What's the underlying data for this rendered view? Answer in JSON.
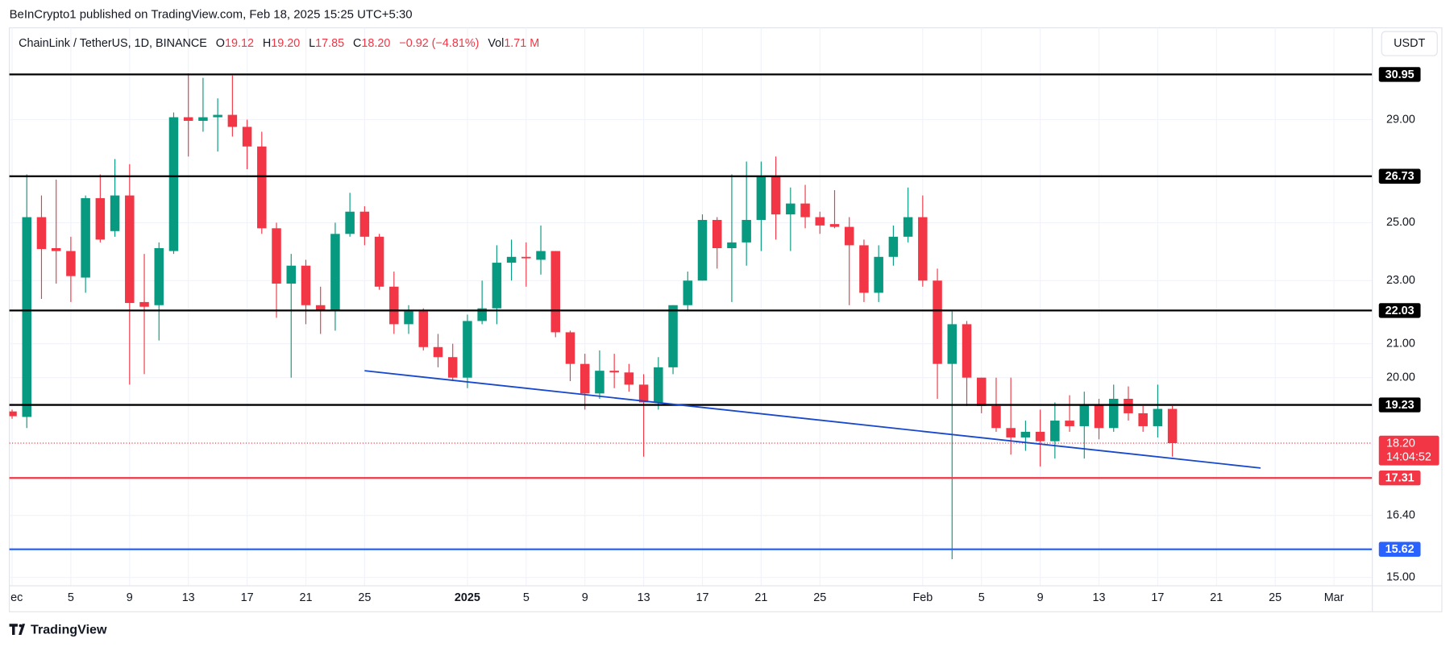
{
  "header": {
    "publisher": "BeInCrypto1 published on TradingView.com, Feb 18, 2025 15:25 UTC+5:30",
    "footer": "TradingView"
  },
  "chart_data": {
    "type": "candlestick",
    "symbol": "ChainLink / TetherUS, 1D, BINANCE",
    "ohlc_legend": [
      {
        "label": "O",
        "value": "19.12"
      },
      {
        "label": "H",
        "value": "19.20"
      },
      {
        "label": "L",
        "value": "17.85"
      },
      {
        "label": "C",
        "value": "18.20"
      }
    ],
    "change": "−0.92 (−4.81%)",
    "volume": {
      "label": "Vol",
      "value": "1.71 M"
    },
    "currency": "USDT",
    "up_color": "#089981",
    "down_color": "#f23645",
    "log_scale": true,
    "grid": true,
    "categories": [
      "Dec 1",
      "Dec 2",
      "Dec 3",
      "Dec 4",
      "Dec 5",
      "Dec 6",
      "Dec 7",
      "Dec 8",
      "Dec 9",
      "Dec 10",
      "Dec 11",
      "Dec 12",
      "Dec 13",
      "Dec 14",
      "Dec 15",
      "Dec 16",
      "Dec 17",
      "Dec 18",
      "Dec 19",
      "Dec 20",
      "Dec 21",
      "Dec 22",
      "Dec 23",
      "Dec 24",
      "Dec 25",
      "Dec 26",
      "Dec 27",
      "Dec 28",
      "Dec 29",
      "Dec 30",
      "Dec 31",
      "Jan 1",
      "Jan 2",
      "Jan 3",
      "Jan 4",
      "Jan 5",
      "Jan 6",
      "Jan 7",
      "Jan 8",
      "Jan 9",
      "Jan 10",
      "Jan 11",
      "Jan 12",
      "Jan 13",
      "Jan 14",
      "Jan 15",
      "Jan 16",
      "Jan 17",
      "Jan 18",
      "Jan 19",
      "Jan 20",
      "Jan 21",
      "Jan 22",
      "Jan 23",
      "Jan 24",
      "Jan 25",
      "Jan 26",
      "Jan 27",
      "Jan 28",
      "Jan 29",
      "Jan 30",
      "Jan 31",
      "Feb 1",
      "Feb 2",
      "Feb 3",
      "Feb 4",
      "Feb 5",
      "Feb 6",
      "Feb 7",
      "Feb 8",
      "Feb 9",
      "Feb 10",
      "Feb 11",
      "Feb 12",
      "Feb 13",
      "Feb 14",
      "Feb 15",
      "Feb 16",
      "Feb 17",
      "Feb 18",
      "Feb 19",
      "Feb 20",
      "Feb 21",
      "Feb 22",
      "Feb 23",
      "Feb 24",
      "Feb 25",
      "Feb 26",
      "Feb 27",
      "Feb 28",
      "Mar 1",
      "Mar 2",
      "Mar 3"
    ],
    "open": [
      19.05,
      18.9,
      25.2,
      24.1,
      24.0,
      23.1,
      25.9,
      24.7,
      26.0,
      22.3,
      22.2,
      24.0,
      29.1,
      28.95,
      29.1,
      29.2,
      28.7,
      27.9,
      24.8,
      22.9,
      23.5,
      22.2,
      22.05,
      24.6,
      25.4,
      24.5,
      22.8,
      21.6,
      22.0,
      20.9,
      20.6,
      20.0,
      21.7,
      22.1,
      23.6,
      23.8,
      23.7,
      24.0,
      21.35,
      20.4,
      19.55,
      20.2,
      20.15,
      19.8,
      19.3,
      20.3,
      22.2,
      23.0,
      25.1,
      24.1,
      24.3,
      25.1,
      26.7,
      25.3,
      25.7,
      25.2,
      24.95,
      24.85,
      24.2,
      22.6,
      23.8,
      24.5,
      25.2,
      23.0,
      20.4,
      21.6,
      20.0,
      19.2,
      18.6,
      18.35,
      18.5,
      18.25,
      18.8,
      18.65,
      19.25,
      18.6,
      19.4,
      19.0,
      18.65,
      19.12,
      null,
      null,
      null,
      null,
      null,
      null,
      null,
      null,
      null,
      null,
      null,
      null,
      null
    ],
    "high": [
      19.1,
      26.8,
      26.0,
      26.6,
      24.5,
      26.0,
      26.8,
      27.4,
      27.2,
      23.9,
      24.3,
      29.3,
      31.0,
      30.8,
      29.9,
      30.9,
      29.0,
      28.5,
      25.0,
      23.9,
      23.7,
      22.8,
      25.0,
      26.1,
      25.6,
      24.6,
      23.3,
      22.2,
      22.1,
      21.3,
      21.0,
      21.9,
      23.0,
      24.2,
      24.4,
      24.3,
      24.9,
      24.0,
      21.4,
      20.7,
      20.8,
      20.7,
      20.4,
      20.1,
      20.6,
      22.2,
      23.3,
      25.3,
      25.2,
      26.8,
      27.3,
      27.3,
      27.5,
      26.3,
      26.4,
      25.4,
      26.2,
      25.2,
      24.4,
      24.2,
      24.9,
      26.3,
      26.0,
      23.4,
      22.0,
      21.7,
      20.0,
      20.0,
      20.0,
      18.8,
      19.1,
      19.3,
      19.5,
      19.6,
      19.4,
      19.8,
      19.75,
      19.2,
      19.8,
      19.2,
      null,
      null,
      null,
      null,
      null,
      null,
      null,
      null,
      null,
      null,
      null,
      null,
      null
    ],
    "low": [
      18.85,
      18.6,
      22.4,
      22.9,
      22.3,
      22.6,
      24.3,
      24.5,
      19.8,
      20.1,
      21.1,
      23.9,
      27.5,
      28.5,
      27.7,
      28.3,
      27.0,
      24.6,
      21.8,
      20.0,
      21.6,
      21.3,
      21.4,
      24.5,
      24.2,
      22.7,
      21.3,
      21.3,
      20.8,
      20.3,
      19.9,
      19.7,
      21.6,
      21.6,
      23.0,
      22.8,
      23.2,
      21.2,
      19.9,
      19.1,
      19.4,
      19.7,
      19.6,
      17.85,
      19.1,
      20.1,
      22.0,
      23.0,
      23.4,
      22.3,
      23.5,
      24.0,
      24.4,
      24.0,
      24.8,
      24.6,
      24.8,
      22.2,
      22.3,
      22.3,
      23.5,
      24.3,
      22.8,
      19.4,
      15.4,
      19.2,
      19.0,
      18.5,
      17.9,
      18.0,
      17.6,
      17.8,
      18.5,
      17.8,
      18.3,
      18.5,
      18.8,
      18.5,
      18.35,
      17.85,
      null,
      null,
      null,
      null,
      null,
      null,
      null,
      null,
      null,
      null,
      null,
      null,
      null
    ],
    "close": [
      18.92,
      25.2,
      24.07,
      24.0,
      23.15,
      25.9,
      24.4,
      26.0,
      22.27,
      22.15,
      24.1,
      29.1,
      28.95,
      29.1,
      29.2,
      28.7,
      27.9,
      24.8,
      22.9,
      23.5,
      22.2,
      22.05,
      24.6,
      25.4,
      24.5,
      22.8,
      21.6,
      22.0,
      20.9,
      20.6,
      20.0,
      21.7,
      22.1,
      23.6,
      23.8,
      23.75,
      24.0,
      21.35,
      20.4,
      19.55,
      20.2,
      20.15,
      19.8,
      19.3,
      20.3,
      22.2,
      23.0,
      25.1,
      24.1,
      24.3,
      25.1,
      26.7,
      25.3,
      25.7,
      25.2,
      24.9,
      24.85,
      24.2,
      22.6,
      23.8,
      24.5,
      25.2,
      23.0,
      20.4,
      21.6,
      20.0,
      19.2,
      18.6,
      18.35,
      18.5,
      18.25,
      18.8,
      18.65,
      19.23,
      18.6,
      19.4,
      19.0,
      18.65,
      19.12,
      18.2,
      null,
      null,
      null,
      null,
      null,
      null,
      null,
      null,
      null,
      null,
      null,
      null,
      null
    ],
    "ylim": [
      14.82,
      33.1
    ],
    "yticks": [
      {
        "value": 15,
        "label": "15.00"
      },
      {
        "value": 16.4,
        "label": "16.40"
      },
      {
        "value": 20,
        "label": "20.00"
      },
      {
        "value": 21,
        "label": "21.00"
      },
      {
        "value": 23,
        "label": "23.00"
      },
      {
        "value": 25,
        "label": "25.00"
      },
      {
        "value": 29,
        "label": "29.00"
      }
    ],
    "xticks": [
      {
        "value": "Dec 1",
        "label": "ec"
      },
      {
        "value": "Dec 5",
        "label": "5"
      },
      {
        "value": "Dec 9",
        "label": "9"
      },
      {
        "value": "Dec 13",
        "label": "13"
      },
      {
        "value": "Dec 17",
        "label": "17"
      },
      {
        "value": "Dec 21",
        "label": "21"
      },
      {
        "value": "Dec 25",
        "label": "25"
      },
      {
        "value": "Jan 1",
        "label": "2025",
        "bold": true
      },
      {
        "value": "Jan 5",
        "label": "5"
      },
      {
        "value": "Jan 9",
        "label": "9"
      },
      {
        "value": "Jan 13",
        "label": "13"
      },
      {
        "value": "Jan 17",
        "label": "17"
      },
      {
        "value": "Jan 21",
        "label": "21"
      },
      {
        "value": "Jan 25",
        "label": "25"
      },
      {
        "value": "Feb 1",
        "label": "Feb"
      },
      {
        "value": "Feb 5",
        "label": "5"
      },
      {
        "value": "Feb 9",
        "label": "9"
      },
      {
        "value": "Feb 13",
        "label": "13"
      },
      {
        "value": "Feb 17",
        "label": "17"
      },
      {
        "value": "Feb 21",
        "label": "21"
      },
      {
        "value": "Feb 25",
        "label": "25"
      },
      {
        "value": "Mar 1",
        "label": "Mar"
      }
    ],
    "levels": [
      {
        "value": 30.95,
        "color": "#000000"
      },
      {
        "value": 26.73,
        "color": "#000000"
      },
      {
        "value": 22.03,
        "color": "#000000"
      },
      {
        "value": 19.23,
        "color": "#000000"
      },
      {
        "value": 17.31,
        "color": "#f23645"
      },
      {
        "value": 15.62,
        "color": "#2962ff"
      }
    ],
    "last_price": {
      "value": 18.2,
      "label": "18.20",
      "countdown": "14:04:52",
      "color": "#f23645"
    },
    "trendline": {
      "color": "#1848cc",
      "points": [
        {
          "x": "Dec 25",
          "y": 20.2
        },
        {
          "x": "Feb 24",
          "y": 17.56
        }
      ]
    }
  }
}
